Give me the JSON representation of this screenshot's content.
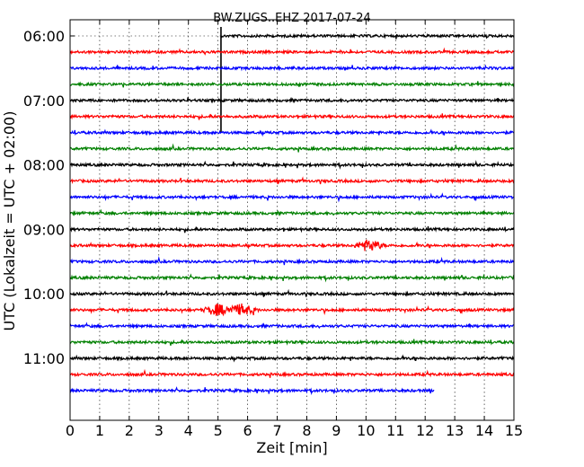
{
  "chart_data": {
    "type": "line",
    "title": "BW.ZUGS..EHZ 2017-07-24",
    "xlabel": "Zeit  [min]",
    "ylabel": "UTC (Lokalzeit = UTC + 02:00)",
    "xlim": [
      0,
      15
    ],
    "x_ticks": [
      "0",
      "1",
      "2",
      "3",
      "4",
      "5",
      "6",
      "7",
      "8",
      "9",
      "10",
      "11",
      "12",
      "13",
      "14",
      "15"
    ],
    "y_ticks": [
      "06:00",
      "07:00",
      "08:00",
      "09:00",
      "10:00",
      "11:00"
    ],
    "grid": true,
    "trace_interval_minutes": 15,
    "trace_start_times": [
      "06:00",
      "06:15",
      "06:30",
      "06:45",
      "07:00",
      "07:15",
      "07:30",
      "07:45",
      "08:00",
      "08:15",
      "08:30",
      "08:45",
      "09:00",
      "09:15",
      "09:30",
      "09:45",
      "10:00",
      "10:15",
      "10:30",
      "10:45",
      "11:00",
      "11:15",
      "11:30"
    ],
    "trace_colors": [
      "#000000",
      "#ff0000",
      "#0000ff",
      "#008000"
    ],
    "data_gap": {
      "trace": "06:00",
      "before_minute": 5.1
    },
    "last_trace_end_minute": 12.3,
    "events": [
      {
        "trace": "06:00",
        "minute": 5.1,
        "type": "step"
      },
      {
        "trace": "09:15",
        "minute": 10.1,
        "type": "burst"
      },
      {
        "trace": "10:15",
        "minute": 5.0,
        "type": "burst"
      },
      {
        "trace": "10:15",
        "minute": 5.8,
        "type": "burst"
      }
    ]
  }
}
